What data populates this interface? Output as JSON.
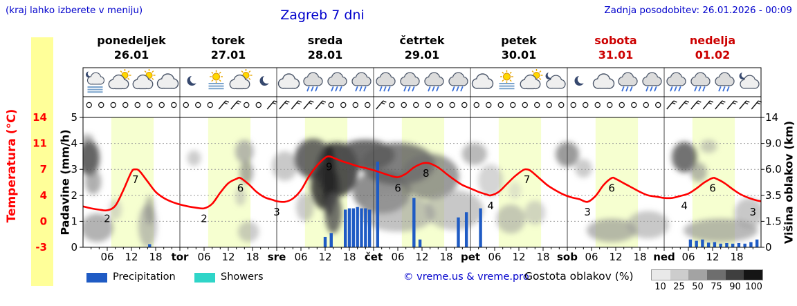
{
  "header": {
    "region_hint": "(kraj lahko izberete v meniju)",
    "title": "Zagreb 7 dni",
    "last_update": "Zadnja posodobitev: 26.01.2026 - 00:09"
  },
  "colors": {
    "header_blue": "#0000cc",
    "temp_red": "#ff0000",
    "day_red": "#cc0000",
    "precip_blue": "#1f5bc4",
    "showers_cyan": "#2fd5c8",
    "day_band": "#f6ffd0",
    "left_strip": "#ffff99"
  },
  "days": [
    {
      "name": "ponedeljek",
      "date": "26.01",
      "red": false
    },
    {
      "name": "torek",
      "date": "27.01",
      "red": false
    },
    {
      "name": "sreda",
      "date": "28.01",
      "red": false
    },
    {
      "name": "četrtek",
      "date": "29.01",
      "red": false
    },
    {
      "name": "petek",
      "date": "30.01",
      "red": false
    },
    {
      "name": "sobota",
      "date": "31.01",
      "red": true
    },
    {
      "name": "nedelja",
      "date": "01.02",
      "red": true
    }
  ],
  "axes": {
    "temp_title": "Temperatura (°C)",
    "temp_ticks": [
      "14",
      "11",
      "7",
      "4",
      "0",
      "-3"
    ],
    "precip_title": "Padavine (mm/h)",
    "precip_ticks": [
      "5",
      "4",
      "3",
      "2",
      "1",
      "0"
    ],
    "cloud_title": "Višina oblakov (km)",
    "cloud_ticks": [
      "14",
      "9.0",
      "6.0",
      "3.5",
      "1.5",
      "0"
    ],
    "x_ticks_per_day": [
      "06",
      "12",
      "18"
    ],
    "day_abbrevs": [
      "tor",
      "sre",
      "čet",
      "pet",
      "sob",
      "ned"
    ]
  },
  "legend": {
    "precipitation": "Precipitation",
    "showers": "Showers",
    "copyright": "© vreme.us & vreme.pro",
    "cloud_density_label": "Gostota oblakov (%)",
    "density_ticks": [
      "10",
      "25",
      "50",
      "75",
      "90",
      "100"
    ],
    "density_grays": [
      "#e9e9e9",
      "#cdcdcd",
      "#a3a3a3",
      "#6e6e6e",
      "#3f3f3f",
      "#151515"
    ]
  },
  "chart_data": {
    "type": "meteogram",
    "title": "Zagreb 7 dni",
    "x_unit": "hours from Mon 26.01 00:00 (0-168)",
    "precip_axis_range": [
      0,
      5
    ],
    "temp_axis_values": [
      -3,
      0,
      4,
      7,
      11,
      14
    ],
    "cloud_axis_values": [
      0,
      1.5,
      3.5,
      6,
      9,
      14
    ],
    "daytime_band_local_hours": [
      7,
      17.5
    ],
    "temperature_c": {
      "name": "Temperatura (°C)",
      "points": [
        [
          0,
          2.3
        ],
        [
          2,
          2.0
        ],
        [
          4,
          1.8
        ],
        [
          6,
          1.7
        ],
        [
          8,
          2.4
        ],
        [
          10,
          4.6
        ],
        [
          12,
          6.7
        ],
        [
          13,
          7.0
        ],
        [
          14,
          6.8
        ],
        [
          16,
          5.6
        ],
        [
          18,
          4.4
        ],
        [
          20,
          3.6
        ],
        [
          22,
          3.0
        ],
        [
          24,
          2.6
        ],
        [
          26,
          2.3
        ],
        [
          28,
          2.1
        ],
        [
          30,
          2.0
        ],
        [
          32,
          2.7
        ],
        [
          34,
          4.3
        ],
        [
          36,
          5.4
        ],
        [
          38,
          5.9
        ],
        [
          39,
          6.0
        ],
        [
          41,
          5.3
        ],
        [
          43,
          4.4
        ],
        [
          45,
          3.7
        ],
        [
          47,
          3.3
        ],
        [
          48,
          3.1
        ],
        [
          50,
          3.0
        ],
        [
          52,
          3.5
        ],
        [
          54,
          4.6
        ],
        [
          56,
          6.2
        ],
        [
          58,
          7.6
        ],
        [
          60,
          8.8
        ],
        [
          61,
          9.0
        ],
        [
          62,
          8.8
        ],
        [
          64,
          8.3
        ],
        [
          66,
          7.9
        ],
        [
          68,
          7.5
        ],
        [
          70,
          7.2
        ],
        [
          72,
          6.9
        ],
        [
          74,
          6.6
        ],
        [
          76,
          6.3
        ],
        [
          78,
          6.1
        ],
        [
          80,
          6.5
        ],
        [
          82,
          7.3
        ],
        [
          84,
          7.9
        ],
        [
          85,
          8.0
        ],
        [
          86,
          7.9
        ],
        [
          88,
          7.3
        ],
        [
          90,
          6.5
        ],
        [
          92,
          5.8
        ],
        [
          94,
          5.2
        ],
        [
          96,
          4.8
        ],
        [
          98,
          4.4
        ],
        [
          100,
          4.1
        ],
        [
          101,
          4.0
        ],
        [
          103,
          4.4
        ],
        [
          105,
          5.3
        ],
        [
          107,
          6.2
        ],
        [
          109,
          6.9
        ],
        [
          110,
          7.0
        ],
        [
          111,
          6.8
        ],
        [
          113,
          6.0
        ],
        [
          115,
          5.2
        ],
        [
          117,
          4.6
        ],
        [
          119,
          4.1
        ],
        [
          121,
          3.7
        ],
        [
          123,
          3.4
        ],
        [
          125,
          3.0
        ],
        [
          127,
          3.9
        ],
        [
          129,
          5.2
        ],
        [
          131,
          6.0
        ],
        [
          132,
          5.9
        ],
        [
          134,
          5.4
        ],
        [
          136,
          4.9
        ],
        [
          138,
          4.4
        ],
        [
          140,
          4.0
        ],
        [
          142,
          3.8
        ],
        [
          144,
          3.6
        ],
        [
          146,
          3.6
        ],
        [
          148,
          3.9
        ],
        [
          150,
          4.2
        ],
        [
          152,
          4.8
        ],
        [
          154,
          5.5
        ],
        [
          156,
          6.0
        ],
        [
          157,
          5.9
        ],
        [
          159,
          5.4
        ],
        [
          161,
          4.7
        ],
        [
          163,
          4.1
        ],
        [
          165,
          3.6
        ],
        [
          167,
          3.2
        ],
        [
          168,
          3.1
        ]
      ]
    },
    "temperature_point_labels": [
      [
        6,
        2
      ],
      [
        13,
        7
      ],
      [
        30,
        2
      ],
      [
        39,
        6
      ],
      [
        48,
        3
      ],
      [
        61,
        9
      ],
      [
        78,
        6
      ],
      [
        85,
        8
      ],
      [
        101,
        4
      ],
      [
        110,
        7
      ],
      [
        125,
        3
      ],
      [
        131,
        6
      ],
      [
        149,
        4
      ],
      [
        156,
        6
      ],
      [
        166,
        3
      ]
    ],
    "precipitation_mm_h": [
      [
        16.5,
        0.12
      ],
      [
        60,
        0.4
      ],
      [
        61.5,
        0.55
      ],
      [
        65,
        1.45
      ],
      [
        66,
        1.5
      ],
      [
        67,
        1.5
      ],
      [
        68,
        1.55
      ],
      [
        69,
        1.5
      ],
      [
        70,
        1.5
      ],
      [
        71,
        1.45
      ],
      [
        73,
        3.3
      ],
      [
        82,
        1.9
      ],
      [
        83.5,
        0.3
      ],
      [
        93,
        1.15
      ],
      [
        95,
        1.35
      ],
      [
        98.5,
        1.5
      ],
      [
        150.5,
        0.3
      ],
      [
        152,
        0.25
      ],
      [
        153.5,
        0.3
      ],
      [
        155,
        0.18
      ],
      [
        156.5,
        0.2
      ],
      [
        158,
        0.14
      ],
      [
        159.5,
        0.16
      ],
      [
        161,
        0.14
      ],
      [
        162.5,
        0.16
      ],
      [
        164,
        0.14
      ],
      [
        165.5,
        0.2
      ],
      [
        167,
        0.3
      ]
    ],
    "cloud_cover_blobs": [
      {
        "h": 1.5,
        "km": 7.5,
        "rh": 2.6,
        "rkm": 2.1,
        "c": "#4a4a4a",
        "o": 0.85
      },
      {
        "h": 1.0,
        "km": 9.9,
        "rh": 1.6,
        "rkm": 0.9,
        "c": "#8a8a8a",
        "o": 0.6
      },
      {
        "h": 2.5,
        "km": 4.8,
        "rh": 2.0,
        "rkm": 1.2,
        "c": "#7a7a7a",
        "o": 0.6
      },
      {
        "h": 3.5,
        "km": 1.2,
        "rh": 4.0,
        "rkm": 0.9,
        "c": "#8a8a8a",
        "o": 0.65
      },
      {
        "h": 8.0,
        "km": 2.4,
        "rh": 1.6,
        "rkm": 0.8,
        "c": "#ababab",
        "o": 0.45
      },
      {
        "h": 16.0,
        "km": 1.4,
        "rh": 2.3,
        "rkm": 1.4,
        "c": "#9a9a9a",
        "o": 0.6
      },
      {
        "h": 16.5,
        "km": 2.4,
        "rh": 1.2,
        "rkm": 1.1,
        "c": "#7f7f7f",
        "o": 0.5
      },
      {
        "h": 27.5,
        "km": 7.3,
        "rh": 1.7,
        "rkm": 0.9,
        "c": "#ababab",
        "o": 0.6
      },
      {
        "h": 40.0,
        "km": 8.2,
        "rh": 2.3,
        "rkm": 1.5,
        "c": "#9a9a9a",
        "o": 0.7
      },
      {
        "h": 40.5,
        "km": 5.8,
        "rh": 1.7,
        "rkm": 1.2,
        "c": "#7a7a7a",
        "o": 0.6
      },
      {
        "h": 39.0,
        "km": 3.5,
        "rh": 1.3,
        "rkm": 0.8,
        "c": "#ababab",
        "o": 0.5
      },
      {
        "h": 41.0,
        "km": 0.9,
        "rh": 2.6,
        "rkm": 0.6,
        "c": "#9a9a9a",
        "o": 0.5
      },
      {
        "h": 50.0,
        "km": 6.5,
        "rh": 3.2,
        "rkm": 1.6,
        "c": "#a5a5a5",
        "o": 0.6
      },
      {
        "h": 55.0,
        "km": 2.6,
        "rh": 2.2,
        "rkm": 1.1,
        "c": "#9a9a9a",
        "o": 0.5
      },
      {
        "h": 57.0,
        "km": 7.5,
        "rh": 4.6,
        "rkm": 2.4,
        "c": "#4f4f4f",
        "o": 0.85
      },
      {
        "h": 63.0,
        "km": 6.3,
        "rh": 5.2,
        "rkm": 2.9,
        "c": "#3f3f3f",
        "o": 0.9
      },
      {
        "h": 60.0,
        "km": 4.5,
        "rh": 3.6,
        "rkm": 2.1,
        "c": "#303030",
        "o": 0.85
      },
      {
        "h": 61.0,
        "km": 5.5,
        "rh": 1.6,
        "rkm": 3.6,
        "c": "#262626",
        "o": 0.9
      },
      {
        "h": 62.0,
        "km": 2.3,
        "rh": 2.1,
        "rkm": 1.5,
        "c": "#4f4f4f",
        "o": 0.8
      },
      {
        "h": 70.0,
        "km": 7.8,
        "rh": 7.2,
        "rkm": 1.9,
        "c": "#4f4f4f",
        "o": 0.85
      },
      {
        "h": 78.0,
        "km": 6.8,
        "rh": 9.2,
        "rkm": 2.3,
        "c": "#5f5f5f",
        "o": 0.8
      },
      {
        "h": 74.0,
        "km": 4.0,
        "rh": 7.2,
        "rkm": 1.9,
        "c": "#5f5f5f",
        "o": 0.7
      },
      {
        "h": 86.0,
        "km": 5.5,
        "rh": 7.2,
        "rkm": 2.3,
        "c": "#707070",
        "o": 0.7
      },
      {
        "h": 78.0,
        "km": 2.2,
        "rh": 9.2,
        "rkm": 1.3,
        "c": "#9a9a9a",
        "o": 0.6
      },
      {
        "h": 92.0,
        "km": 2.5,
        "rh": 7.2,
        "rkm": 1.5,
        "c": "#9a9a9a",
        "o": 0.55
      },
      {
        "h": 97.0,
        "km": 7.8,
        "rh": 3.1,
        "rkm": 1.3,
        "c": "#8a8a8a",
        "o": 0.6
      },
      {
        "h": 101.0,
        "km": 5.0,
        "rh": 3.1,
        "rkm": 1.6,
        "c": "#ababab",
        "o": 0.5
      },
      {
        "h": 106.0,
        "km": 1.8,
        "rh": 3.6,
        "rkm": 1.0,
        "c": "#9a9a9a",
        "o": 0.55
      },
      {
        "h": 107.0,
        "km": 4.0,
        "rh": 1.6,
        "rkm": 0.8,
        "c": "#bbbbbb",
        "o": 0.4
      },
      {
        "h": 112.0,
        "km": 2.2,
        "rh": 2.6,
        "rkm": 0.9,
        "c": "#ababab",
        "o": 0.5
      },
      {
        "h": 120.0,
        "km": 7.8,
        "rh": 2.9,
        "rkm": 1.5,
        "c": "#6f6f6f",
        "o": 0.7
      },
      {
        "h": 124.0,
        "km": 6.2,
        "rh": 2.1,
        "rkm": 1.0,
        "c": "#9a9a9a",
        "o": 0.5
      },
      {
        "h": 131.0,
        "km": 1.0,
        "rh": 6.2,
        "rkm": 0.7,
        "c": "#8a8a8a",
        "o": 0.6
      },
      {
        "h": 140.0,
        "km": 1.4,
        "rh": 5.2,
        "rkm": 0.9,
        "c": "#9a9a9a",
        "o": 0.55
      },
      {
        "h": 149.0,
        "km": 7.5,
        "rh": 3.1,
        "rkm": 1.8,
        "c": "#4f4f4f",
        "o": 0.8
      },
      {
        "h": 152.5,
        "km": 5.8,
        "rh": 2.1,
        "rkm": 1.0,
        "c": "#8a8a8a",
        "o": 0.6
      },
      {
        "h": 155.0,
        "km": 8.8,
        "rh": 2.1,
        "rkm": 0.9,
        "c": "#9a9a9a",
        "o": 0.5
      },
      {
        "h": 158.0,
        "km": 1.0,
        "rh": 9.2,
        "rkm": 0.7,
        "c": "#8a8a8a",
        "o": 0.6
      },
      {
        "h": 165.0,
        "km": 2.2,
        "rh": 3.6,
        "rkm": 1.1,
        "c": "#9a9a9a",
        "o": 0.55
      }
    ],
    "weather_icons": [
      "moon-cloud-fog",
      "sun-cloud",
      "sun-cloud",
      "cloud",
      "moon",
      "sun-fog",
      "sun-cloud",
      "moon",
      "cloud",
      "rain-cloud",
      "rain-cloud",
      "rain-cloud",
      "rain-cloud",
      "rain-cloud",
      "rain-cloud",
      "rain-cloud",
      "cloud",
      "sun-fog",
      "sun-cloud",
      "moon-cloud",
      "moon",
      "cloud",
      "rain-cloud",
      "rain-cloud",
      "rain-cloud",
      "rain-cloud",
      "rain-cloud",
      "moon-cloud"
    ],
    "wind_symbols": {
      "step_h": 3,
      "first_h": 1.5,
      "count": 56,
      "barb_hours": [
        34.5,
        37.5,
        46.5,
        49.5,
        52.5,
        55.5,
        58.5,
        73.5,
        145.5,
        148.5,
        151.5,
        154.5,
        157.5,
        160.5,
        163.5,
        166.5
      ]
    }
  }
}
